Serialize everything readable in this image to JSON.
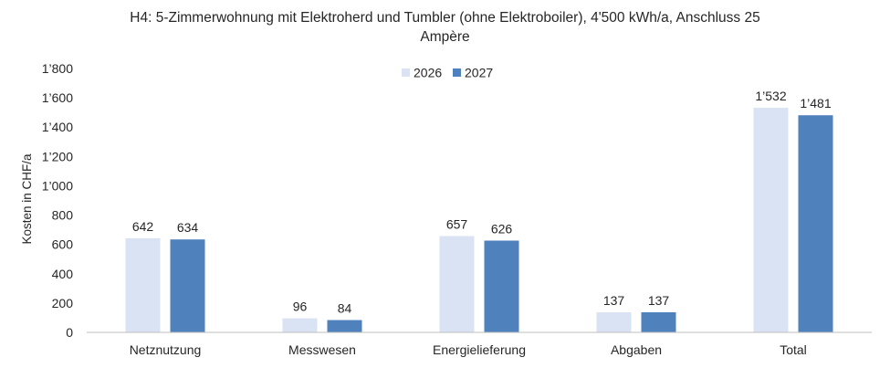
{
  "chart_data": {
    "type": "bar",
    "title_lines": [
      "H4: 5-Zimmerwohnung mit Elektroherd und Tumbler (ohne Elektroboiler), 4'500 kWh/a, Anschluss 25",
      "Ampère"
    ],
    "ylabel": "Kosten in CHF/a",
    "xlabel": "",
    "ylim": [
      0,
      1800
    ],
    "yticks": [
      0,
      200,
      400,
      600,
      800,
      1000,
      1200,
      1400,
      1600,
      1800
    ],
    "ytick_labels": [
      "0",
      "200",
      "400",
      "600",
      "800",
      "1’000",
      "1’200",
      "1’400",
      "1’600",
      "1’800"
    ],
    "categories": [
      "Netznutzung",
      "Messwesen",
      "Energielieferung",
      "Abgaben",
      "Total"
    ],
    "series": [
      {
        "name": "2026",
        "color": "#dae3f3",
        "values": [
          642,
          96,
          657,
          137,
          1532
        ],
        "labels": [
          "642",
          "96",
          "657",
          "137",
          "1’532"
        ]
      },
      {
        "name": "2027",
        "color": "#4f81bd",
        "values": [
          634,
          84,
          626,
          137,
          1481
        ],
        "labels": [
          "634",
          "84",
          "626",
          "137",
          "1’481"
        ]
      }
    ],
    "legend_position": "top-center",
    "grid": false
  }
}
